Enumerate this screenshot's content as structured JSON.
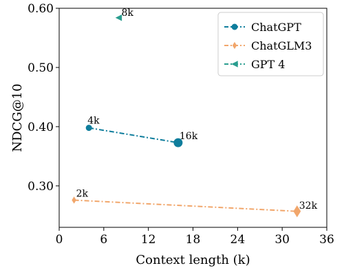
{
  "chart_data": {
    "type": "line",
    "xlabel": "Context length (k)",
    "ylabel": "NDCG@10",
    "xlim": [
      0,
      36
    ],
    "ylim": [
      0.23,
      0.6
    ],
    "x_ticks": [
      0,
      6,
      12,
      18,
      24,
      30,
      36
    ],
    "x_tick_labels": [
      "0",
      "6",
      "12",
      "18",
      "24",
      "30",
      "36"
    ],
    "y_ticks": [
      0.3,
      0.4,
      0.5,
      0.6
    ],
    "y_tick_labels": [
      "0.30",
      "0.40",
      "0.50",
      "0.60"
    ],
    "grid": false,
    "legend_position": "top-right",
    "series": [
      {
        "name": "ChatGPT",
        "color": "#0e7d9c",
        "marker": "circle",
        "line_style": "dashdot",
        "points": [
          {
            "x": 4,
            "y": 0.398,
            "label": "4k",
            "size": "small"
          },
          {
            "x": 16,
            "y": 0.373,
            "label": "16k",
            "size": "large"
          }
        ]
      },
      {
        "name": "ChatGLM3",
        "color": "#f1a66b",
        "marker": "diamond",
        "line_style": "dashdot",
        "points": [
          {
            "x": 2,
            "y": 0.276,
            "label": "2k",
            "size": "small"
          },
          {
            "x": 32,
            "y": 0.257,
            "label": "32k",
            "size": "large"
          }
        ]
      },
      {
        "name": "GPT 4",
        "color": "#2a9d8f",
        "marker": "triangle-left",
        "line_style": "dashdot",
        "points": [
          {
            "x": 8,
            "y": 0.584,
            "label": "8k",
            "size": "small"
          }
        ]
      }
    ]
  }
}
